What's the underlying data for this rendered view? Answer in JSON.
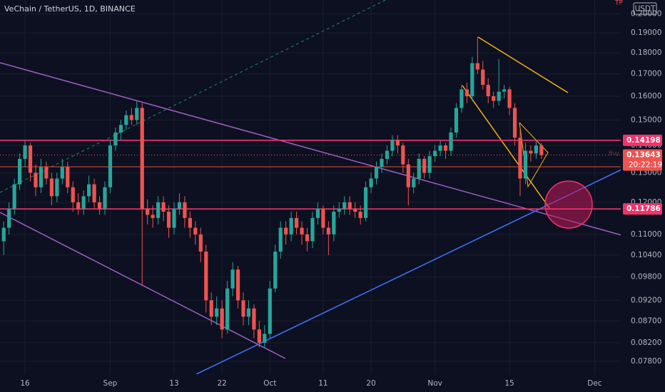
{
  "chart_data": {
    "type": "candlestick",
    "title": "VeChain / TetherUS, 1D, BINANCE",
    "currency": "USDT",
    "countdown": "20:22:19",
    "annotations": [
      "TP",
      "Buy"
    ],
    "log_scale": true,
    "grid": true,
    "up_color": "#26a69a",
    "down_color": "#ef5350",
    "level_color": "#f0346b",
    "levels": [
      0.14198,
      0.11786
    ],
    "xlim": [
      -4.7,
      111.9
    ],
    "ylim": [
      0.0753,
      0.2077
    ],
    "xticks": [
      {
        "value": 0,
        "label": "16"
      },
      {
        "value": 16,
        "label": "Sep"
      },
      {
        "value": 28,
        "label": "13"
      },
      {
        "value": 37,
        "label": "22"
      },
      {
        "value": 46,
        "label": "Oct"
      },
      {
        "value": 56,
        "label": "11"
      },
      {
        "value": 65,
        "label": "20"
      },
      {
        "value": 77,
        "label": "Nov"
      },
      {
        "value": 91,
        "label": "15"
      },
      {
        "value": 107,
        "label": "Dec"
      }
    ],
    "yticks": [
      {
        "value": 0.2,
        "label": "0.20000"
      },
      {
        "value": 0.19,
        "label": "0.19000"
      },
      {
        "value": 0.18,
        "label": "0.18000"
      },
      {
        "value": 0.17,
        "label": "0.17000"
      },
      {
        "value": 0.16,
        "label": "0.16000"
      },
      {
        "value": 0.15,
        "label": "0.15000"
      },
      {
        "value": 0.14,
        "label": "0.14000"
      },
      {
        "value": 0.13,
        "label": "0.13000"
      },
      {
        "value": 0.12,
        "label": "0.12000"
      },
      {
        "value": 0.11,
        "label": "0.11000"
      },
      {
        "value": 0.104,
        "label": "0.10400"
      },
      {
        "value": 0.098,
        "label": "0.09800"
      },
      {
        "value": 0.092,
        "label": "0.09200"
      },
      {
        "value": 0.087,
        "label": "0.08700"
      },
      {
        "value": 0.082,
        "label": "0.08200"
      },
      {
        "value": 0.078,
        "label": "0.07800"
      }
    ],
    "x": [
      -4,
      -3,
      -2,
      -1,
      0,
      1,
      2,
      3,
      4,
      5,
      6,
      7,
      8,
      9,
      10,
      11,
      12,
      13,
      14,
      15,
      16,
      17,
      18,
      19,
      20,
      21,
      22,
      23,
      24,
      25,
      26,
      27,
      28,
      29,
      30,
      31,
      32,
      33,
      34,
      35,
      36,
      37,
      38,
      39,
      40,
      41,
      42,
      43,
      44,
      45,
      46,
      47,
      48,
      49,
      50,
      51,
      52,
      53,
      54,
      55,
      56,
      57,
      58,
      59,
      60,
      61,
      62,
      63,
      64,
      65,
      66,
      67,
      68,
      69,
      70,
      71,
      72,
      73,
      74,
      75,
      76,
      77,
      78,
      79,
      80,
      81,
      82,
      83,
      84,
      85,
      86,
      87,
      88,
      89,
      90,
      91,
      92,
      93,
      94,
      95,
      96,
      97
    ],
    "ohlc": [
      [
        0.108,
        0.114,
        0.104,
        0.112
      ],
      [
        0.112,
        0.12,
        0.11,
        0.118
      ],
      [
        0.118,
        0.128,
        0.116,
        0.126
      ],
      [
        0.126,
        0.137,
        0.124,
        0.135
      ],
      [
        0.135,
        0.1419,
        0.132,
        0.14
      ],
      [
        0.14,
        0.141,
        0.127,
        0.13
      ],
      [
        0.13,
        0.133,
        0.122,
        0.125
      ],
      [
        0.125,
        0.135,
        0.123,
        0.132
      ],
      [
        0.132,
        0.134,
        0.126,
        0.128
      ],
      [
        0.128,
        0.13,
        0.119,
        0.122
      ],
      [
        0.122,
        0.13,
        0.12,
        0.128
      ],
      [
        0.128,
        0.135,
        0.126,
        0.132
      ],
      [
        0.132,
        0.134,
        0.123,
        0.125
      ],
      [
        0.125,
        0.127,
        0.117,
        0.12
      ],
      [
        0.12,
        0.123,
        0.116,
        0.118
      ],
      [
        0.118,
        0.124,
        0.116,
        0.122
      ],
      [
        0.122,
        0.129,
        0.12,
        0.126
      ],
      [
        0.126,
        0.128,
        0.118,
        0.12
      ],
      [
        0.12,
        0.122,
        0.116,
        0.118
      ],
      [
        0.118,
        0.127,
        0.116,
        0.125
      ],
      [
        0.125,
        0.142,
        0.123,
        0.14
      ],
      [
        0.14,
        0.147,
        0.138,
        0.145
      ],
      [
        0.145,
        0.15,
        0.142,
        0.148
      ],
      [
        0.148,
        0.154,
        0.146,
        0.152
      ],
      [
        0.152,
        0.155,
        0.148,
        0.15
      ],
      [
        0.15,
        0.158,
        0.148,
        0.155
      ],
      [
        0.155,
        0.157,
        0.096,
        0.118
      ],
      [
        0.118,
        0.121,
        0.113,
        0.116
      ],
      [
        0.116,
        0.119,
        0.112,
        0.115
      ],
      [
        0.115,
        0.122,
        0.113,
        0.12
      ],
      [
        0.12,
        0.122,
        0.114,
        0.117
      ],
      [
        0.117,
        0.119,
        0.109,
        0.112
      ],
      [
        0.112,
        0.12,
        0.11,
        0.118
      ],
      [
        0.118,
        0.123,
        0.116,
        0.12
      ],
      [
        0.12,
        0.122,
        0.112,
        0.115
      ],
      [
        0.115,
        0.117,
        0.109,
        0.112
      ],
      [
        0.112,
        0.114,
        0.107,
        0.11
      ],
      [
        0.11,
        0.112,
        0.102,
        0.105
      ],
      [
        0.105,
        0.107,
        0.089,
        0.092
      ],
      [
        0.092,
        0.094,
        0.086,
        0.088
      ],
      [
        0.088,
        0.093,
        0.086,
        0.09
      ],
      [
        0.09,
        0.092,
        0.083,
        0.085
      ],
      [
        0.085,
        0.097,
        0.084,
        0.095
      ],
      [
        0.095,
        0.102,
        0.093,
        0.1
      ],
      [
        0.1,
        0.101,
        0.09,
        0.092
      ],
      [
        0.092,
        0.094,
        0.086,
        0.088
      ],
      [
        0.088,
        0.092,
        0.086,
        0.09
      ],
      [
        0.09,
        0.091,
        0.083,
        0.085
      ],
      [
        0.085,
        0.087,
        0.081,
        0.082
      ],
      [
        0.082,
        0.086,
        0.081,
        0.084
      ],
      [
        0.084,
        0.097,
        0.083,
        0.095
      ],
      [
        0.095,
        0.107,
        0.094,
        0.105
      ],
      [
        0.105,
        0.114,
        0.103,
        0.112
      ],
      [
        0.112,
        0.114,
        0.107,
        0.11
      ],
      [
        0.11,
        0.117,
        0.108,
        0.115
      ],
      [
        0.115,
        0.117,
        0.11,
        0.112
      ],
      [
        0.112,
        0.114,
        0.107,
        0.11
      ],
      [
        0.11,
        0.112,
        0.105,
        0.108
      ],
      [
        0.108,
        0.117,
        0.106,
        0.115
      ],
      [
        0.115,
        0.12,
        0.113,
        0.118
      ],
      [
        0.118,
        0.119,
        0.11,
        0.112
      ],
      [
        0.112,
        0.114,
        0.104,
        0.11
      ],
      [
        0.11,
        0.119,
        0.108,
        0.117
      ],
      [
        0.117,
        0.12,
        0.115,
        0.118
      ],
      [
        0.118,
        0.122,
        0.116,
        0.12
      ],
      [
        0.12,
        0.122,
        0.116,
        0.118
      ],
      [
        0.118,
        0.12,
        0.115,
        0.117
      ],
      [
        0.117,
        0.119,
        0.113,
        0.115
      ],
      [
        0.115,
        0.127,
        0.114,
        0.125
      ],
      [
        0.125,
        0.13,
        0.123,
        0.128
      ],
      [
        0.128,
        0.134,
        0.126,
        0.132
      ],
      [
        0.132,
        0.137,
        0.13,
        0.135
      ],
      [
        0.135,
        0.14,
        0.133,
        0.138
      ],
      [
        0.138,
        0.144,
        0.136,
        0.142
      ],
      [
        0.142,
        0.144,
        0.137,
        0.14
      ],
      [
        0.14,
        0.141,
        0.13,
        0.133
      ],
      [
        0.133,
        0.135,
        0.119,
        0.125
      ],
      [
        0.125,
        0.13,
        0.123,
        0.128
      ],
      [
        0.128,
        0.137,
        0.126,
        0.135
      ],
      [
        0.135,
        0.136,
        0.128,
        0.13
      ],
      [
        0.13,
        0.138,
        0.128,
        0.136
      ],
      [
        0.136,
        0.14,
        0.134,
        0.138
      ],
      [
        0.138,
        0.142,
        0.136,
        0.14
      ],
      [
        0.14,
        0.141,
        0.135,
        0.138
      ],
      [
        0.138,
        0.147,
        0.136,
        0.145
      ],
      [
        0.145,
        0.157,
        0.143,
        0.155
      ],
      [
        0.155,
        0.165,
        0.153,
        0.163
      ],
      [
        0.163,
        0.166,
        0.157,
        0.16
      ],
      [
        0.16,
        0.178,
        0.158,
        0.175
      ],
      [
        0.175,
        0.188,
        0.17,
        0.172
      ],
      [
        0.172,
        0.176,
        0.163,
        0.165
      ],
      [
        0.165,
        0.168,
        0.157,
        0.16
      ],
      [
        0.16,
        0.162,
        0.155,
        0.158
      ],
      [
        0.158,
        0.177,
        0.156,
        0.162
      ],
      [
        0.162,
        0.165,
        0.159,
        0.163
      ],
      [
        0.163,
        0.164,
        0.152,
        0.155
      ],
      [
        0.155,
        0.157,
        0.14,
        0.143
      ],
      [
        0.143,
        0.146,
        0.122,
        0.128
      ],
      [
        0.128,
        0.141,
        0.126,
        0.138
      ],
      [
        0.138,
        0.14,
        0.134,
        0.137
      ],
      [
        0.137,
        0.142,
        0.135,
        0.14
      ],
      [
        0.14,
        0.141,
        0.135,
        0.13643
      ]
    ]
  }
}
